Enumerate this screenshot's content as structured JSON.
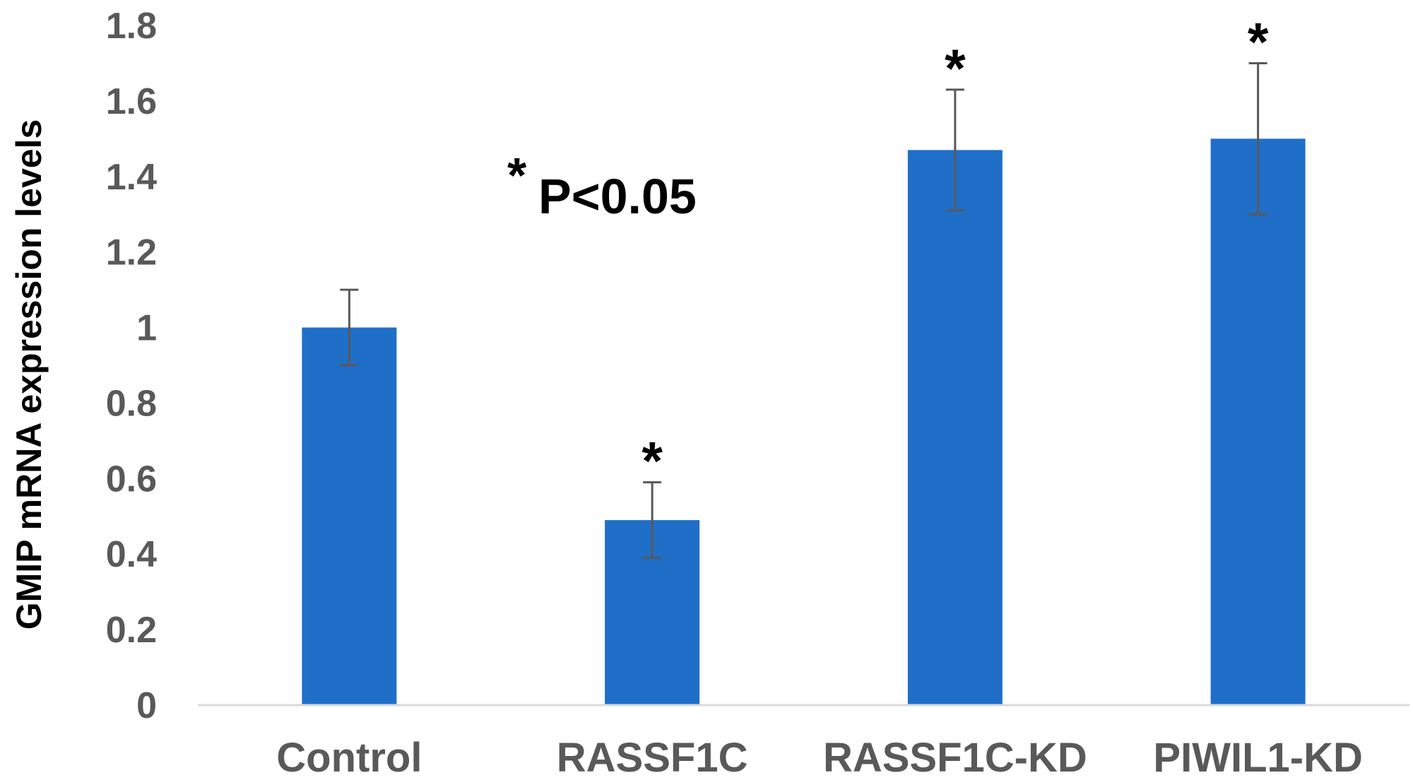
{
  "chart_data": {
    "type": "bar",
    "categories": [
      "Control",
      "RASSF1C",
      "RASSF1C-KD",
      "PIWIL1-KD"
    ],
    "values": [
      1.0,
      0.49,
      1.47,
      1.5
    ],
    "error": [
      0.1,
      0.1,
      0.16,
      0.2
    ],
    "significance": [
      "",
      "*",
      "*",
      "*"
    ],
    "ylabel": "GMIP mRNA expression levels",
    "ylim": [
      0,
      1.8
    ],
    "yticks": [
      0,
      0.2,
      0.4,
      0.6,
      0.8,
      1,
      1.2,
      1.4,
      1.6,
      1.8
    ],
    "ytick_labels": [
      "0",
      "0.2",
      "0.4",
      "0.6",
      "0.8",
      "1",
      "1.2",
      "1.4",
      "1.6",
      "1.8"
    ],
    "annotation": {
      "star": "*",
      "text": "P<0.05"
    },
    "grid": false,
    "bar_color": "#1F6FC9",
    "error_color": "#595959",
    "axis_color": "#D9D9D9"
  }
}
